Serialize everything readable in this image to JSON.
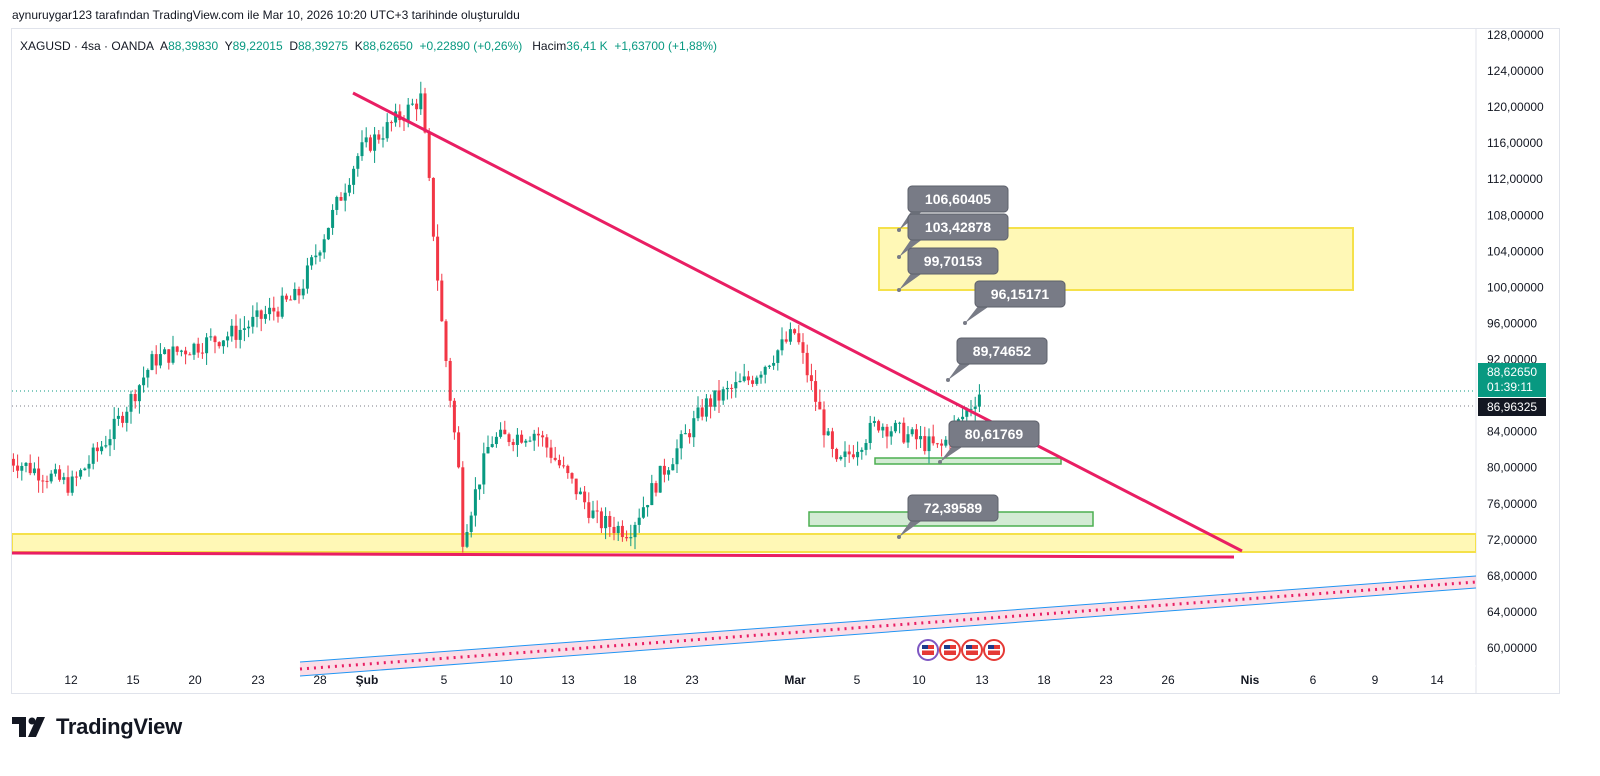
{
  "header": {
    "published_by": "aynuruygar123 tarafından TradingView.com ile Mar 10, 2026 10:20 UTC+3 tarihinde oluşturuldu"
  },
  "legend": {
    "symbol": "XAGUSD · 4sa · OANDA",
    "open_label": "A",
    "open_value": "88,39830",
    "high_label": "Y",
    "high_value": "89,22015",
    "low_label": "D",
    "low_value": "88,39275",
    "close_label": "K",
    "close_value": "88,62650",
    "change": "+0,22890 (+0,26%)",
    "volume_label": "Hacim",
    "volume_value": "36,41 K",
    "volume_change": "+1,63700 (+1,88%)"
  },
  "price_axis": {
    "labels": [
      "128,00000",
      "124,00000",
      "120,00000",
      "116,00000",
      "112,00000",
      "108,00000",
      "104,00000",
      "100,00000",
      "96,00000",
      "92,00000",
      "84,00000",
      "80,00000",
      "76,00000",
      "72,00000",
      "68,00000",
      "64,00000",
      "60,00000"
    ],
    "current_price": "88,62650",
    "countdown": "01:39:11",
    "reference_price": "86,96325"
  },
  "time_axis": {
    "labels": [
      "12",
      "15",
      "20",
      "23",
      "28",
      "Şub",
      "5",
      "10",
      "13",
      "18",
      "23",
      "Mar",
      "5",
      "10",
      "13",
      "18",
      "23",
      "26",
      "Nis",
      "6",
      "9",
      "14"
    ],
    "bold_labels": [
      "Şub",
      "Mar",
      "Nis"
    ]
  },
  "annotations": {
    "notes": [
      "106,60405",
      "103,42878",
      "99,70153",
      "96,15171",
      "89,74652",
      "80,61769",
      "72,39589"
    ]
  },
  "colors": {
    "up": "#089981",
    "down": "#f23645",
    "trendline": "#e91e63",
    "yellow_fill": "#fff59d",
    "yellow_border": "#f5e14a",
    "green_fill": "#c8e6c9",
    "green_border": "#4caf50",
    "note_bg": "#787b86",
    "price_tag": "#089981",
    "ref_tag": "#131722"
  },
  "chart_data": {
    "type": "candlestick",
    "symbol": "XAGUSD",
    "timeframe": "4sa",
    "ylim": [
      58,
      130
    ],
    "approx_close_path": [
      {
        "x": "9 Oca",
        "y": 81
      },
      {
        "x": "12 Oca",
        "y": 78
      },
      {
        "x": "14 Oca",
        "y": 84
      },
      {
        "x": "16 Oca",
        "y": 92
      },
      {
        "x": "20 Oca",
        "y": 95
      },
      {
        "x": "23 Oca",
        "y": 99
      },
      {
        "x": "26 Oca",
        "y": 115
      },
      {
        "x": "29 Oca",
        "y": 121
      },
      {
        "x": "30 Oca",
        "y": 96
      },
      {
        "x": "31 Oca",
        "y": 76
      },
      {
        "x": "3 Şub",
        "y": 88
      },
      {
        "x": "6 Şub",
        "y": 65
      },
      {
        "x": "9 Şub",
        "y": 83
      },
      {
        "x": "12 Şub",
        "y": 84
      },
      {
        "x": "16 Şub",
        "y": 74
      },
      {
        "x": "18 Şub",
        "y": 73
      },
      {
        "x": "20 Şub",
        "y": 79
      },
      {
        "x": "23 Şub",
        "y": 87
      },
      {
        "x": "26 Şub",
        "y": 90
      },
      {
        "x": "1 Mar",
        "y": 95
      },
      {
        "x": "3 Mar",
        "y": 80
      },
      {
        "x": "5 Mar",
        "y": 85
      },
      {
        "x": "8 Mar",
        "y": 82
      },
      {
        "x": "10 Mar",
        "y": 88.63
      }
    ],
    "current_close": 88.6265,
    "reference_line": 86.96325,
    "descending_trendline": {
      "from": {
        "x": "29 Oca",
        "y": 121.5
      },
      "to": {
        "x": "1 Nis",
        "y": 71
      }
    },
    "support_line": 70.4,
    "support_zone": [
      70.8,
      72.6
    ],
    "resistance_zone": [
      100,
      106.6
    ],
    "zones": [
      {
        "type": "support-green",
        "range": [
          79.5,
          80.6
        ]
      },
      {
        "type": "target-green",
        "range": [
          73.5,
          75
        ]
      }
    ]
  }
}
